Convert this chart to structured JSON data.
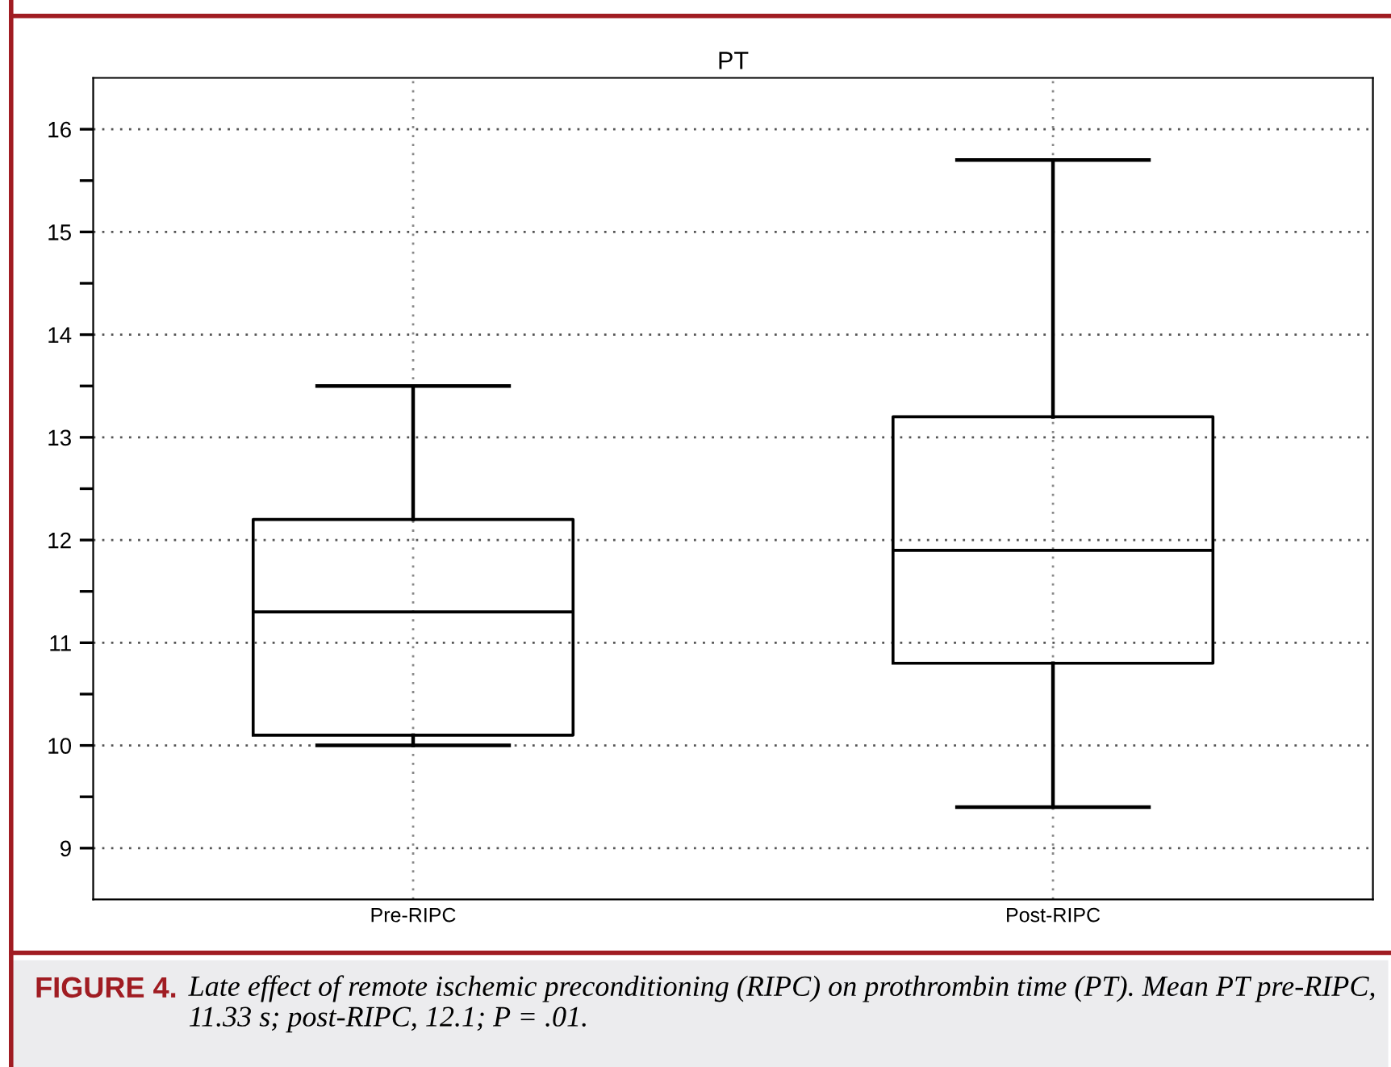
{
  "chart_data": {
    "type": "box",
    "title": "PT",
    "categories": [
      "Pre-RIPC",
      "Post-RIPC"
    ],
    "boxes": [
      {
        "low": 10.0,
        "q1": 10.1,
        "median": 11.3,
        "q3": 12.2,
        "high": 13.5
      },
      {
        "low": 9.4,
        "q1": 10.8,
        "median": 11.9,
        "q3": 13.2,
        "high": 15.7
      }
    ],
    "color": "#000000",
    "ylim": [
      8.5,
      16.5
    ],
    "yticks": [
      9,
      {
        "value": 9.5,
        "label": null
      },
      10,
      {
        "value": 10.5,
        "label": null
      },
      11,
      {
        "value": 11.5,
        "label": null
      },
      12,
      {
        "value": 12.5,
        "label": null
      },
      13,
      {
        "value": 13.5,
        "label": null
      },
      14,
      {
        "value": 14.5,
        "label": null
      },
      15,
      {
        "value": 15.5,
        "label": null
      },
      16
    ],
    "grid": true,
    "annotations": [
      "FIGURE 4.",
      "Late effect of remote ischemic preconditioning (RIPC) on prothrombin time (PT). Mean PT pre-RIPC, 11.33 s; post-RIPC, 12.1; P = .01."
    ]
  }
}
